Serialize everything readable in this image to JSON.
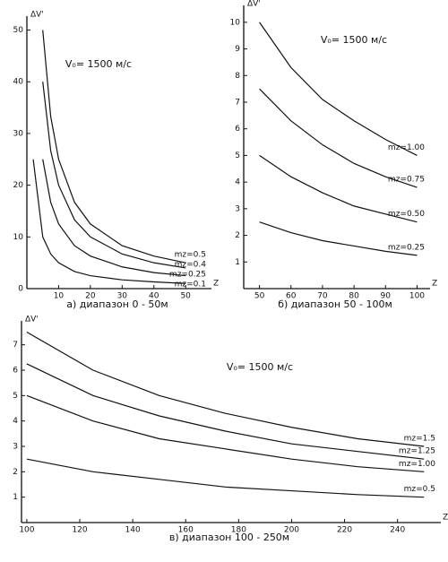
{
  "chart_data": [
    {
      "type": "line",
      "title": "V₀= 1500 м/с",
      "caption": "а) диапазон 0 - 50м",
      "xlabel": "Z",
      "ylabel": "ΔV'",
      "x": [
        2,
        5,
        7.5,
        10,
        15,
        20,
        30,
        40,
        50
      ],
      "series": [
        {
          "name": "mz=0.5",
          "color": "#111",
          "values": [
            null,
            50,
            33.3,
            25,
            16.7,
            12.5,
            8.3,
            6.3,
            5
          ]
        },
        {
          "name": "mz=0.4",
          "color": "#111",
          "values": [
            null,
            40,
            26.7,
            20,
            13.3,
            10,
            6.7,
            5,
            4
          ]
        },
        {
          "name": "mz=0.25",
          "color": "#111",
          "values": [
            null,
            25,
            16.7,
            12.5,
            8.3,
            6.3,
            4.2,
            3.1,
            2.5
          ]
        },
        {
          "name": "mz=0.1",
          "color": "#111",
          "values": [
            25,
            10,
            6.7,
            5,
            3.3,
            2.5,
            1.7,
            1.3,
            1
          ]
        }
      ],
      "xlim": [
        0,
        57
      ],
      "ylim": [
        0,
        52
      ],
      "xticks": [
        10,
        20,
        30,
        40,
        50
      ],
      "yticks": [
        0,
        10,
        20,
        30,
        40,
        50
      ]
    },
    {
      "type": "line",
      "title": "V₀= 1500 м/с",
      "caption": "б) диапазон 50 - 100м",
      "xlabel": "Z",
      "ylabel": "ΔV'",
      "x": [
        50,
        60,
        70,
        80,
        90,
        100
      ],
      "series": [
        {
          "name": "mz=1.00",
          "color": "#111",
          "values": [
            10,
            8.3,
            7.1,
            6.3,
            5.6,
            5
          ]
        },
        {
          "name": "mz=0.75",
          "color": "#111",
          "values": [
            7.5,
            6.3,
            5.4,
            4.7,
            4.2,
            3.8
          ]
        },
        {
          "name": "mz=0.50",
          "color": "#111",
          "values": [
            5,
            4.2,
            3.6,
            3.1,
            2.8,
            2.5
          ]
        },
        {
          "name": "mz=0.25",
          "color": "#111",
          "values": [
            2.5,
            2.1,
            1.8,
            1.6,
            1.4,
            1.25
          ]
        }
      ],
      "xlim": [
        45,
        103
      ],
      "ylim": [
        0,
        10.5
      ],
      "xticks": [
        50,
        60,
        70,
        80,
        90,
        100
      ],
      "yticks": [
        1,
        2,
        3,
        4,
        5,
        6,
        7,
        8,
        9,
        10
      ]
    },
    {
      "type": "line",
      "title": "V₀= 1500 м/с",
      "caption": "в) диапазон 100 - 250м",
      "xlabel": "Z",
      "ylabel": "ΔV'",
      "x": [
        100,
        125,
        150,
        175,
        200,
        225,
        250
      ],
      "series": [
        {
          "name": "mz=1.5",
          "color": "#111",
          "values": [
            7.5,
            6,
            5,
            4.3,
            3.75,
            3.3,
            3
          ]
        },
        {
          "name": "mz=1.25",
          "color": "#111",
          "values": [
            6.25,
            5,
            4.2,
            3.6,
            3.1,
            2.8,
            2.5
          ]
        },
        {
          "name": "mz=1.00",
          "color": "#111",
          "values": [
            5,
            4,
            3.3,
            2.9,
            2.5,
            2.2,
            2
          ]
        },
        {
          "name": "mz=0.5",
          "color": "#111",
          "values": [
            2.5,
            2,
            1.7,
            1.4,
            1.25,
            1.1,
            1
          ]
        }
      ],
      "xlim": [
        98,
        255
      ],
      "ylim": [
        0,
        7.8
      ],
      "xticks": [
        100,
        120,
        140,
        160,
        180,
        200,
        220,
        240
      ],
      "yticks": [
        1,
        2,
        3,
        4,
        5,
        6,
        7
      ]
    }
  ]
}
